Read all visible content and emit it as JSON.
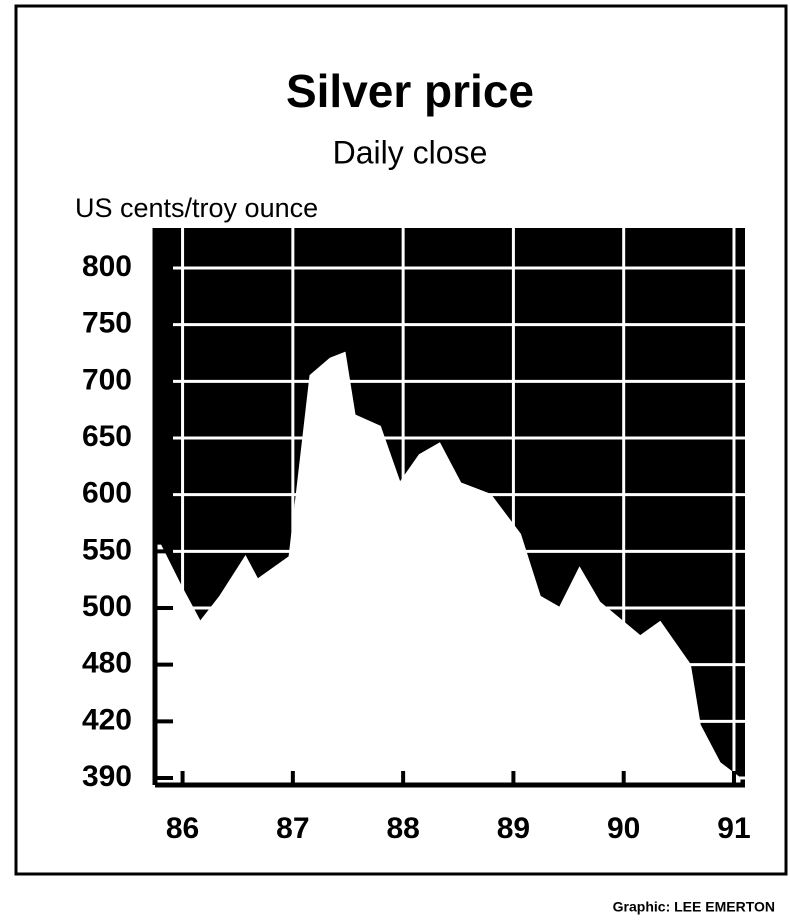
{
  "chart_data": {
    "type": "area",
    "title": "Silver price",
    "subtitle": "Daily close",
    "y_label": "US cents/troy ounce",
    "credit": "Graphic: LEE EMERTON",
    "x": [
      85.8,
      85.98,
      86.16,
      86.34,
      86.57,
      86.68,
      86.97,
      87.16,
      87.34,
      87.47,
      87.56,
      87.79,
      87.97,
      88.15,
      88.33,
      88.52,
      88.79,
      89.06,
      89.24,
      89.42,
      89.6,
      89.78,
      90.15,
      90.33,
      90.6,
      90.69,
      90.87,
      91.05
    ],
    "values": [
      555,
      520,
      495,
      510,
      545,
      525,
      545,
      705,
      720,
      725,
      670,
      660,
      610,
      635,
      645,
      610,
      600,
      565,
      510,
      500,
      535,
      505,
      490,
      495,
      480,
      418,
      398,
      390
    ],
    "color": "#ffffff",
    "background": "#000000",
    "xlim": [
      85.75,
      91.1
    ],
    "xticks": [
      86,
      87,
      88,
      89,
      90,
      91
    ],
    "ylim": [
      390,
      800
    ],
    "yticks": [
      800,
      750,
      700,
      650,
      600,
      550,
      500,
      480,
      420,
      390
    ],
    "grid": true
  }
}
